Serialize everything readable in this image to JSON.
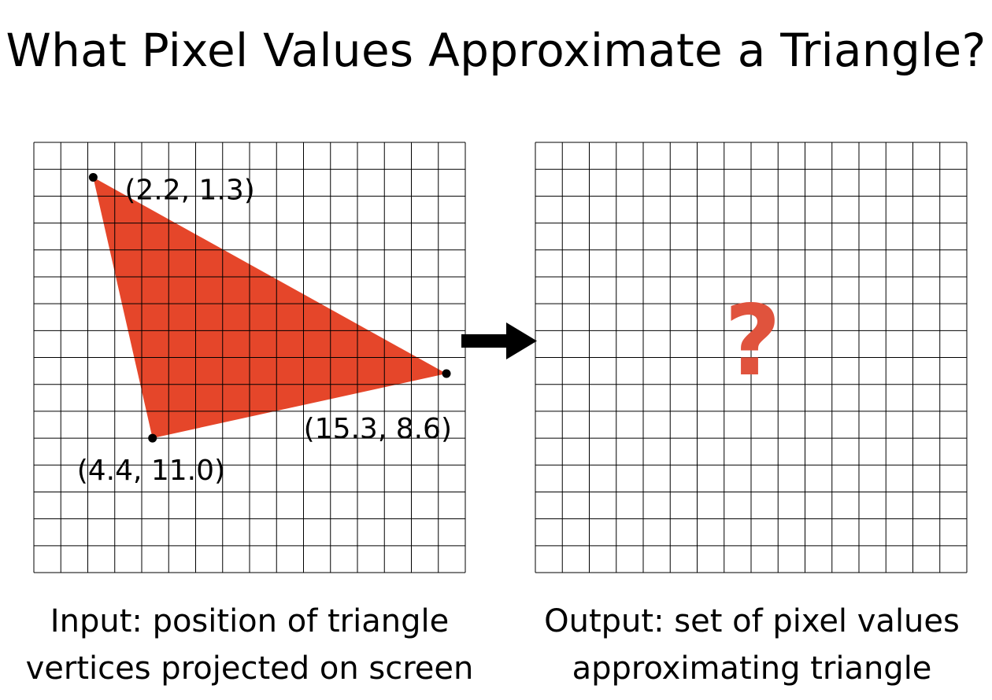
{
  "title": "What Pixel Values Approximate a Triangle?",
  "input_grid": {
    "columns": 16,
    "rows": 16,
    "triangle_color": "#e5462a",
    "vertices": [
      {
        "x": 2.2,
        "y": 1.3,
        "label": "(2.2, 1.3)"
      },
      {
        "x": 15.3,
        "y": 8.6,
        "label": "(15.3, 8.6)"
      },
      {
        "x": 4.4,
        "y": 11.0,
        "label": "(4.4, 11.0)"
      }
    ]
  },
  "output_grid": {
    "columns": 16,
    "rows": 16,
    "question_mark": "?",
    "question_color": "#e0533d"
  },
  "captions": {
    "input": {
      "line1": "Input: position of triangle",
      "line2": "vertices projected on screen"
    },
    "output": {
      "line1": "Output: set of pixel values",
      "line2": "approximating triangle"
    }
  }
}
